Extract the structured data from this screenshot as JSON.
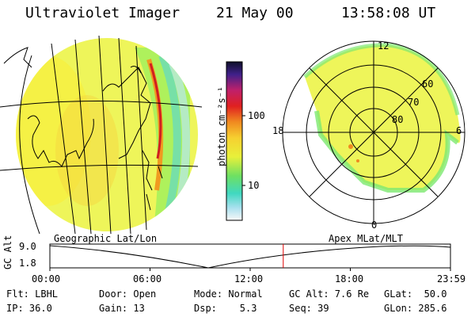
{
  "header": {
    "instrument": "Ultraviolet Imager",
    "date": "21 May 00",
    "time": "13:58:08 UT"
  },
  "colorbar": {
    "unit_label": "photon cm⁻²s⁻¹",
    "ticks": [
      "100",
      "10"
    ]
  },
  "polar_plot": {
    "mlt_labels": [
      "12",
      "18",
      "6",
      "0"
    ],
    "lat_labels": [
      "60",
      "70",
      "80"
    ]
  },
  "timeline": {
    "left_title": "Geographic Lat/Lon",
    "right_title": "Apex MLat/MLT",
    "y_axis_label": "GC Alt",
    "y_ticks": [
      "9.0",
      "1.8"
    ],
    "x_ticks": [
      "00:00",
      "06:00",
      "12:00",
      "18:00",
      "23:59"
    ],
    "current_time_fraction": 0.5826
  },
  "status": {
    "filter": "Flt: LBHL",
    "ip": "IP: 36.0",
    "door": "Door: Open",
    "gain": "Gain: 13",
    "mode": "Mode: Normal",
    "dsp": "Dsp:    5.3",
    "gc_alt": "GC Alt: 7.6 Re",
    "seq": "Seq: 39",
    "glat": "GLat:  50.0",
    "glon": "GLon: 285.6"
  },
  "colors": {
    "marker": "#e00000",
    "fill_yellow": "#f5f53c",
    "fill_green": "#9ff05a"
  }
}
